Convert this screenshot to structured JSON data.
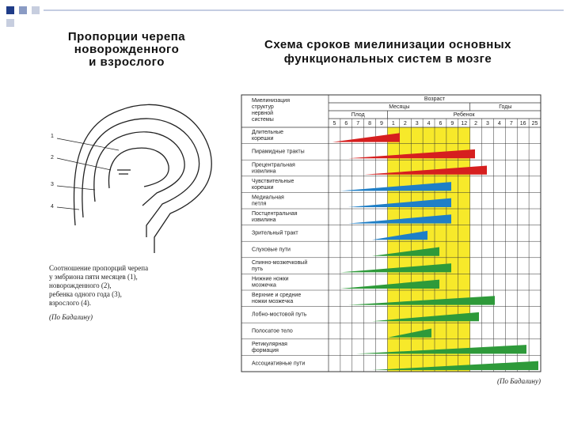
{
  "left_title": [
    "Пропорции черепа",
    "новорожденного",
    "и взрослого"
  ],
  "right_title": [
    "Схема сроков миелинизации основных",
    "функциональных систем в мозге"
  ],
  "figure_labels": [
    "1",
    "2",
    "3",
    "4"
  ],
  "caption": [
    "Соотношение пропорций черепа",
    "у эмбриона пяти месяцев (1),",
    "новорожденного (2),",
    "ребенка одного года (3),",
    "взрослого (4).",
    "(По     Бадалину)"
  ],
  "table": {
    "corner": [
      "Миелинизация",
      "структур",
      "нервной",
      "системы"
    ],
    "age": "Возраст",
    "months": "Месяцы",
    "years": "Годы",
    "fetus": "Плод",
    "child": "Ребенок",
    "columns": [
      5,
      6,
      7,
      8,
      9,
      1,
      2,
      3,
      4,
      6,
      9,
      12,
      2,
      3,
      4,
      7,
      16,
      25
    ],
    "rows": [
      [
        "Длительные",
        "корешки"
      ],
      [
        "Пирамидные тракты"
      ],
      [
        "Прецентральная",
        "извилина"
      ],
      [
        "Чувствительные",
        "корешки"
      ],
      [
        "Медиальная",
        "петля"
      ],
      [
        "Постцентральная",
        "извилина"
      ],
      [
        "Зрительный тракт"
      ],
      [
        "Слуховые пути"
      ],
      [
        "Спинно-мозжечковый",
        "путь"
      ],
      [
        "Нижние ножки",
        "мозжечка"
      ],
      [
        "Верхние и средние",
        "ножки мозжечка"
      ],
      [
        "Лобно-мостовой путь"
      ],
      [
        "Полосатое тело"
      ],
      [
        "Ретикулярная",
        "формация"
      ],
      [
        "Ассоциативные пути"
      ]
    ]
  },
  "source": "(По Бадалину)"
}
